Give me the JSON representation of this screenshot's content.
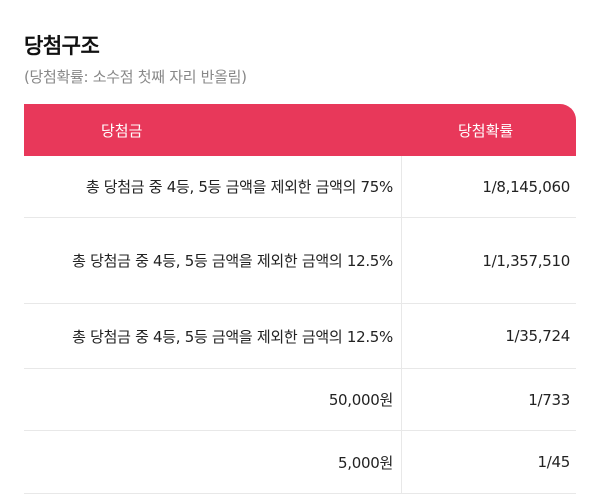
{
  "header": {
    "title": "당첨구조",
    "subtitle": "(당첨확률: 소수점 첫째 자리 반올림)"
  },
  "table": {
    "columns": [
      "당첨금",
      "당첨확률"
    ],
    "rows": [
      {
        "amount": "총 당첨금 중 4등, 5등 금액을 제외한 금액의 75%",
        "probability": "1/8,145,060"
      },
      {
        "amount": "총 당첨금 중 4등, 5등 금액을 제외한 금액의 12.5%",
        "probability": "1/1,357,510"
      },
      {
        "amount": "총 당첨금 중 4등, 5등 금액을 제외한 금액의 12.5%",
        "probability": "1/35,724"
      },
      {
        "amount": "50,000원",
        "probability": "1/733"
      },
      {
        "amount": "5,000원",
        "probability": "1/45"
      }
    ]
  },
  "colors": {
    "header_background": "#e8385a",
    "header_text": "#ffffff",
    "grid_line": "#e8e8e8"
  }
}
